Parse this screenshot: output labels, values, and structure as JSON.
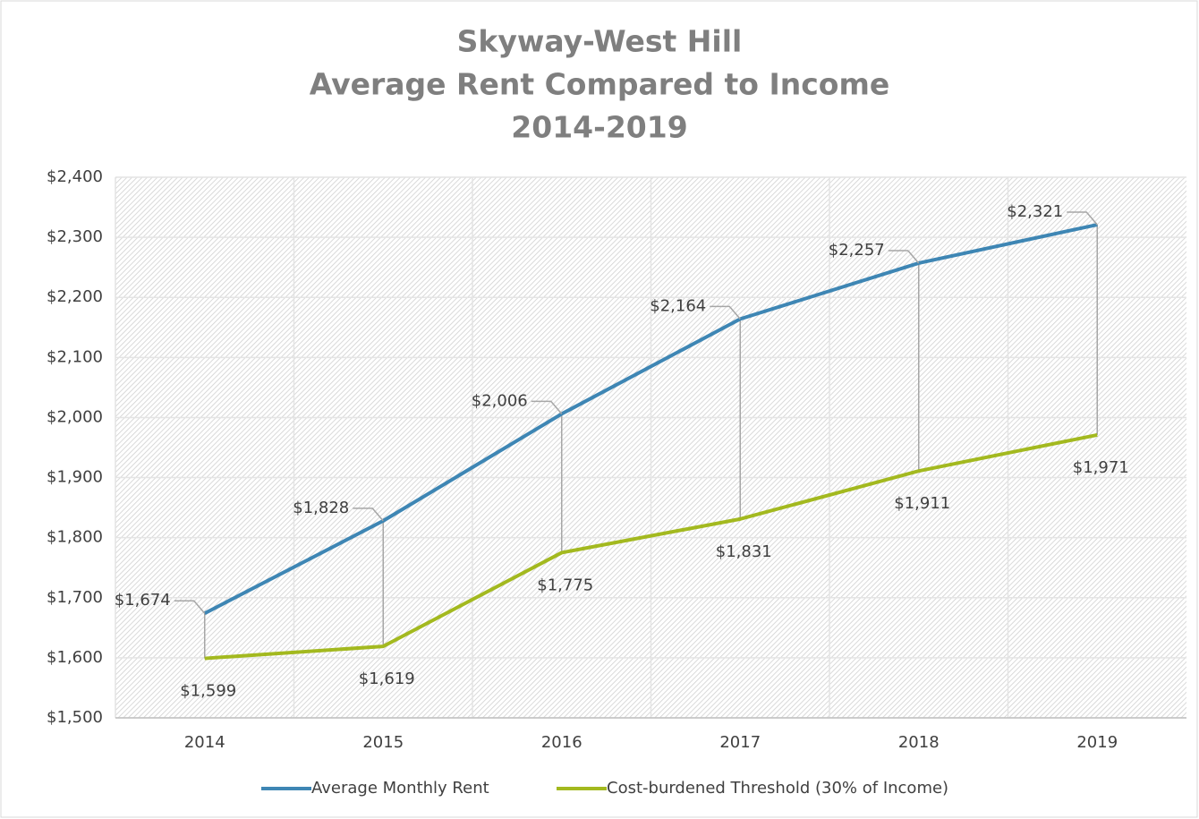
{
  "chart_data": {
    "type": "line",
    "title": [
      "Skyway-West Hill",
      "Average Rent Compared to Income",
      "2014-2019"
    ],
    "categories": [
      "2014",
      "2015",
      "2016",
      "2017",
      "2018",
      "2019"
    ],
    "series": [
      {
        "name": "Average Monthly Rent",
        "color": "#3e86b4",
        "values": [
          1674,
          1828,
          2006,
          2164,
          2257,
          2321
        ],
        "value_labels": [
          "$1,674",
          "$1,828",
          "$2,006",
          "$2,164",
          "$2,257",
          "$2,321"
        ]
      },
      {
        "name": "Cost-burdened Threshold (30% of Income)",
        "color": "#a3b91f",
        "values": [
          1599,
          1619,
          1775,
          1831,
          1911,
          1971
        ],
        "value_labels": [
          "$1,599",
          "$1,619",
          "$1,775",
          "$1,831",
          "$1,911",
          "$1,971"
        ]
      }
    ],
    "ylim": [
      1500,
      2400
    ],
    "yticks": [
      {
        "value": 1500,
        "label": "$1,500"
      },
      {
        "value": 1600,
        "label": "$1,600"
      },
      {
        "value": 1700,
        "label": "$1,700"
      },
      {
        "value": 1800,
        "label": "$1,800"
      },
      {
        "value": 1900,
        "label": "$1,900"
      },
      {
        "value": 2000,
        "label": "$2,000"
      },
      {
        "value": 2100,
        "label": "$2,100"
      },
      {
        "value": 2200,
        "label": "$2,200"
      },
      {
        "value": 2300,
        "label": "$2,300"
      },
      {
        "value": 2400,
        "label": "$2,400"
      }
    ],
    "grid": true,
    "legend": "bottom"
  }
}
